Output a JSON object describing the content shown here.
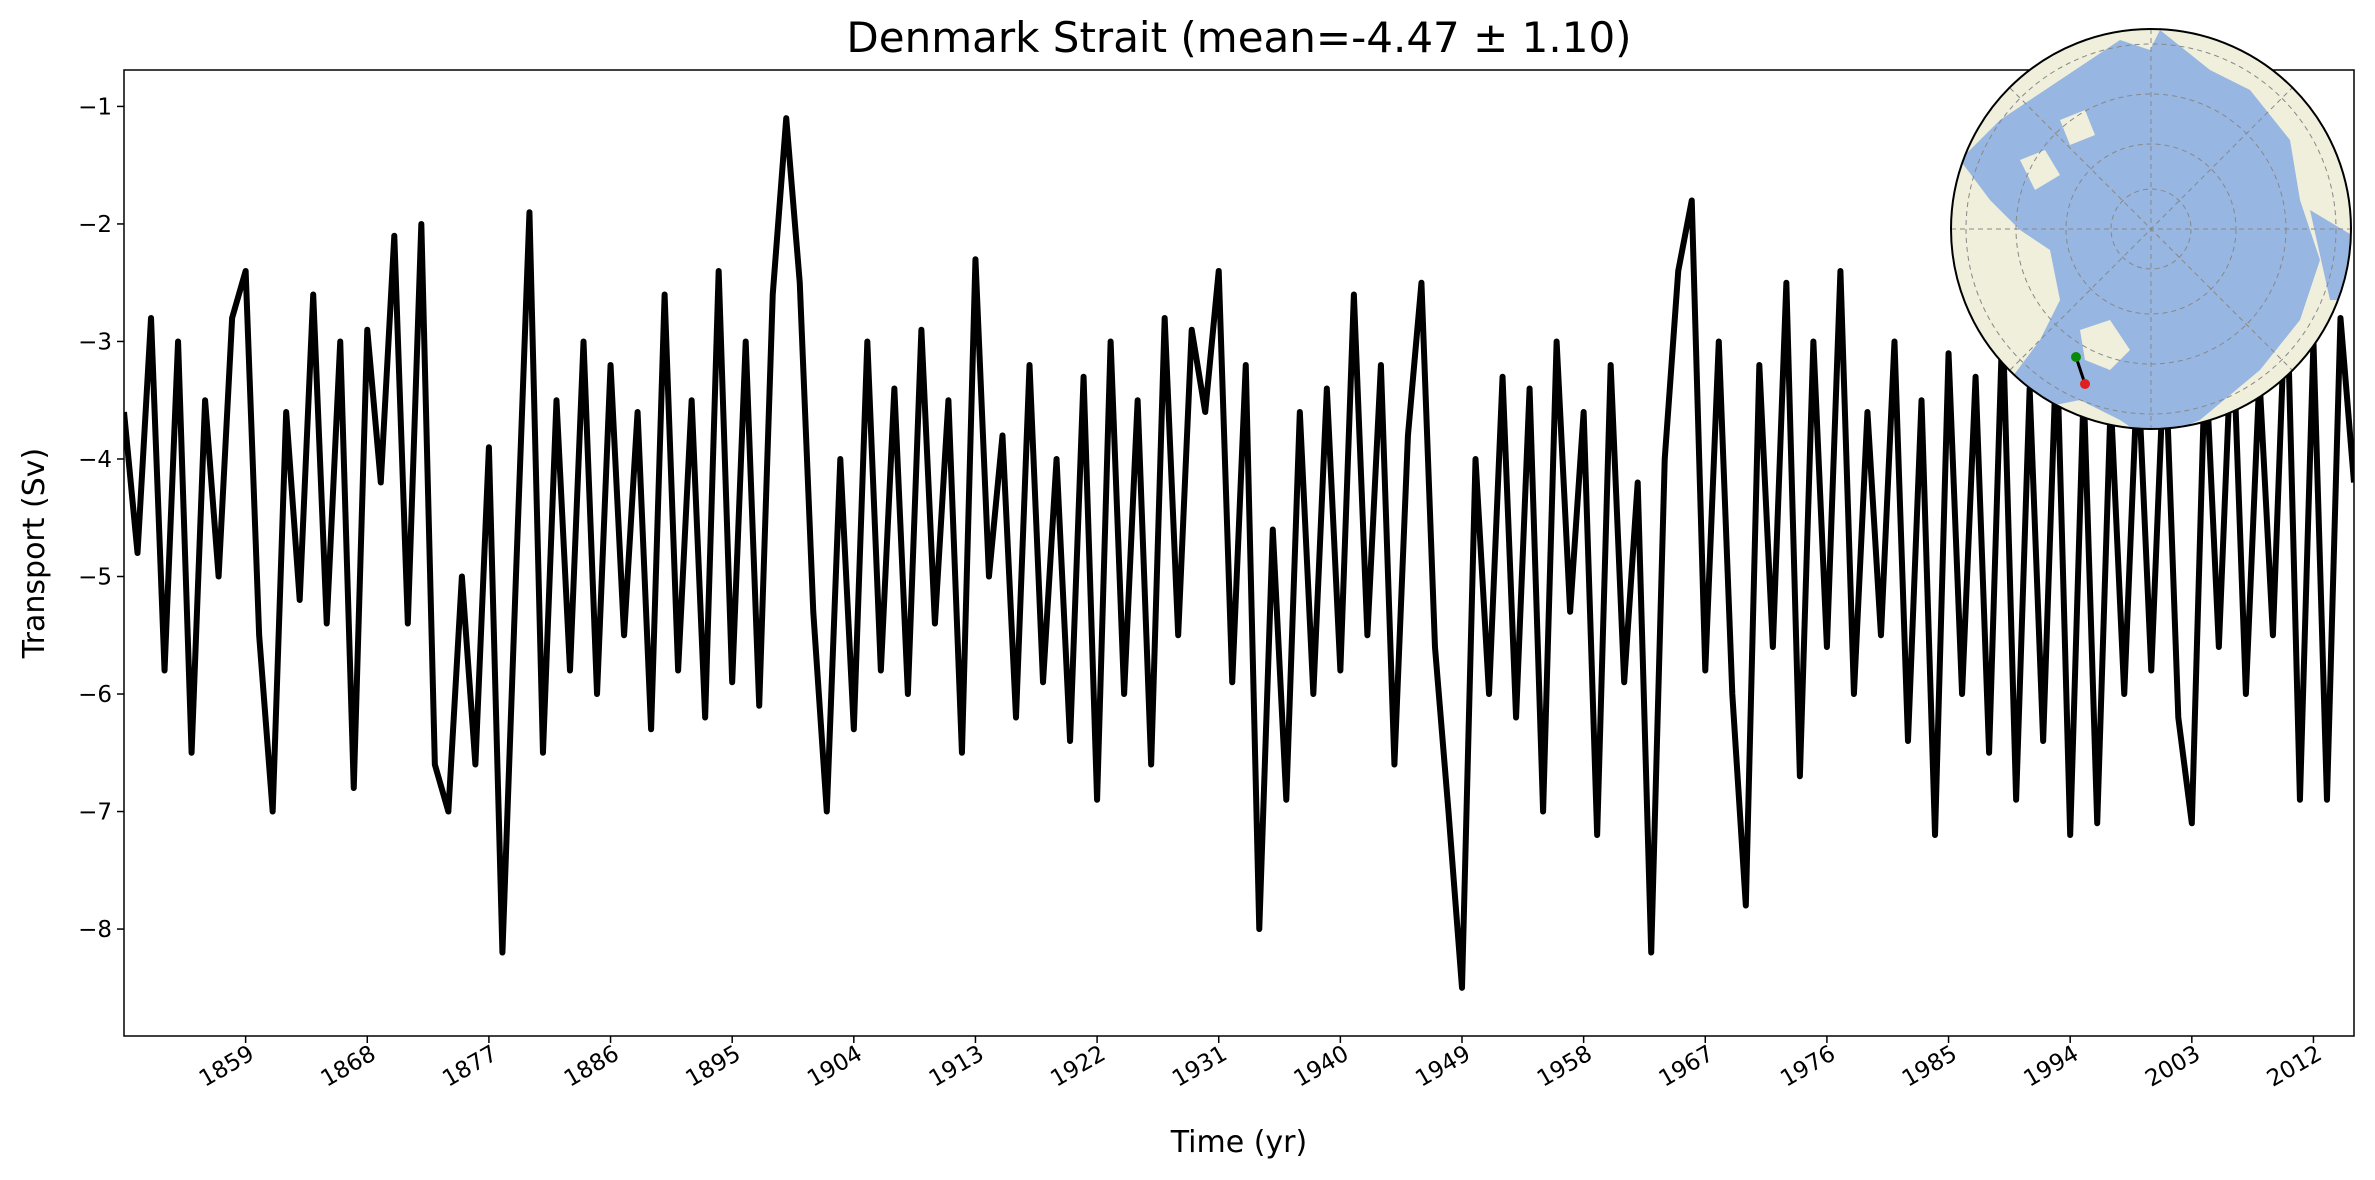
{
  "chart_data": {
    "type": "line",
    "title": "Denmark Strait (mean=-4.47 ± 1.10)",
    "x_label": "Time (yr)",
    "y_label": "Transport (Sv)",
    "color": "#000000",
    "x": [
      1850,
      1851,
      1852,
      1853,
      1854,
      1855,
      1856,
      1857,
      1858,
      1859,
      1860,
      1861,
      1862,
      1863,
      1864,
      1865,
      1866,
      1867,
      1868,
      1869,
      1870,
      1871,
      1872,
      1873,
      1874,
      1875,
      1876,
      1877,
      1878,
      1879,
      1880,
      1881,
      1882,
      1883,
      1884,
      1885,
      1886,
      1887,
      1888,
      1889,
      1890,
      1891,
      1892,
      1893,
      1894,
      1895,
      1896,
      1897,
      1898,
      1899,
      1900,
      1901,
      1902,
      1903,
      1904,
      1905,
      1906,
      1907,
      1908,
      1909,
      1910,
      1911,
      1912,
      1913,
      1914,
      1915,
      1916,
      1917,
      1918,
      1919,
      1920,
      1921,
      1922,
      1923,
      1924,
      1925,
      1926,
      1927,
      1928,
      1929,
      1930,
      1931,
      1932,
      1933,
      1934,
      1935,
      1936,
      1937,
      1938,
      1939,
      1940,
      1941,
      1942,
      1943,
      1944,
      1945,
      1946,
      1947,
      1948,
      1949,
      1950,
      1951,
      1952,
      1953,
      1954,
      1955,
      1956,
      1957,
      1958,
      1959,
      1960,
      1961,
      1962,
      1963,
      1964,
      1965,
      1966,
      1967,
      1968,
      1969,
      1970,
      1971,
      1972,
      1973,
      1974,
      1975,
      1976,
      1977,
      1978,
      1979,
      1980,
      1981,
      1982,
      1983,
      1984,
      1985,
      1986,
      1987,
      1988,
      1989,
      1990,
      1991,
      1992,
      1993,
      1994,
      1995,
      1996,
      1997,
      1998,
      1999,
      2000,
      2001,
      2002,
      2003,
      2004,
      2005,
      2006,
      2007,
      2008,
      2009,
      2010,
      2011,
      2012,
      2013,
      2014,
      2015
    ],
    "values": [
      -3.6,
      -4.8,
      -2.8,
      -5.8,
      -3.0,
      -6.5,
      -3.5,
      -5.0,
      -2.8,
      -2.4,
      -5.5,
      -7.0,
      -3.6,
      -5.2,
      -2.6,
      -5.4,
      -3.0,
      -6.8,
      -2.9,
      -4.2,
      -2.1,
      -5.4,
      -2.0,
      -6.6,
      -7.0,
      -5.0,
      -6.6,
      -3.9,
      -8.2,
      -5.0,
      -1.9,
      -6.5,
      -3.5,
      -5.8,
      -3.0,
      -6.0,
      -3.2,
      -5.5,
      -3.6,
      -6.3,
      -2.6,
      -5.8,
      -3.5,
      -6.2,
      -2.4,
      -5.9,
      -3.0,
      -6.1,
      -2.6,
      -1.1,
      -2.5,
      -5.3,
      -7.0,
      -4.0,
      -6.3,
      -3.0,
      -5.8,
      -3.4,
      -6.0,
      -2.9,
      -5.4,
      -3.5,
      -6.5,
      -2.3,
      -5.0,
      -3.8,
      -6.2,
      -3.2,
      -5.9,
      -4.0,
      -6.4,
      -3.3,
      -6.9,
      -3.0,
      -6.0,
      -3.5,
      -6.6,
      -2.8,
      -5.5,
      -2.9,
      -3.6,
      -2.4,
      -5.9,
      -3.2,
      -8.0,
      -4.6,
      -6.9,
      -3.6,
      -6.0,
      -3.4,
      -5.8,
      -2.6,
      -5.5,
      -3.2,
      -6.6,
      -3.8,
      -2.5,
      -5.6,
      -7.0,
      -8.5,
      -4.0,
      -6.0,
      -3.3,
      -6.2,
      -3.4,
      -7.0,
      -3.0,
      -5.3,
      -3.6,
      -7.2,
      -3.2,
      -5.9,
      -4.2,
      -8.2,
      -4.0,
      -2.4,
      -1.8,
      -5.8,
      -3.0,
      -6.0,
      -7.8,
      -3.2,
      -5.6,
      -2.5,
      -6.7,
      -3.0,
      -5.6,
      -2.4,
      -6.0,
      -3.6,
      -5.5,
      -3.0,
      -6.4,
      -3.5,
      -7.2,
      -3.1,
      -6.0,
      -3.3,
      -6.5,
      -2.8,
      -6.9,
      -3.4,
      -6.4,
      -3.0,
      -7.2,
      -3.4,
      -7.1,
      -3.5,
      -6.0,
      -3.2,
      -5.8,
      -3.0,
      -6.2,
      -7.1,
      -3.1,
      -5.6,
      -2.8,
      -6.0,
      -3.3,
      -5.5,
      -2.4,
      -6.9,
      -3.0,
      -6.9,
      -2.8,
      -4.2
    ],
    "xlim": [
      1850,
      2015
    ],
    "xticks": [
      1859,
      1868,
      1877,
      1886,
      1895,
      1904,
      1913,
      1922,
      1931,
      1940,
      1949,
      1958,
      1967,
      1976,
      1985,
      1994,
      2003,
      2012
    ],
    "ylim": [
      -8.91,
      -0.69
    ],
    "yticks": [
      {
        "value": -1,
        "label": "−1"
      },
      {
        "value": -2,
        "label": "−2"
      },
      {
        "value": -3,
        "label": "−3"
      },
      {
        "value": -4,
        "label": "−4"
      },
      {
        "value": -5,
        "label": "−5"
      },
      {
        "value": -6,
        "label": "−6"
      },
      {
        "value": -7,
        "label": "−7"
      },
      {
        "value": -8,
        "label": "−8"
      }
    ]
  }
}
